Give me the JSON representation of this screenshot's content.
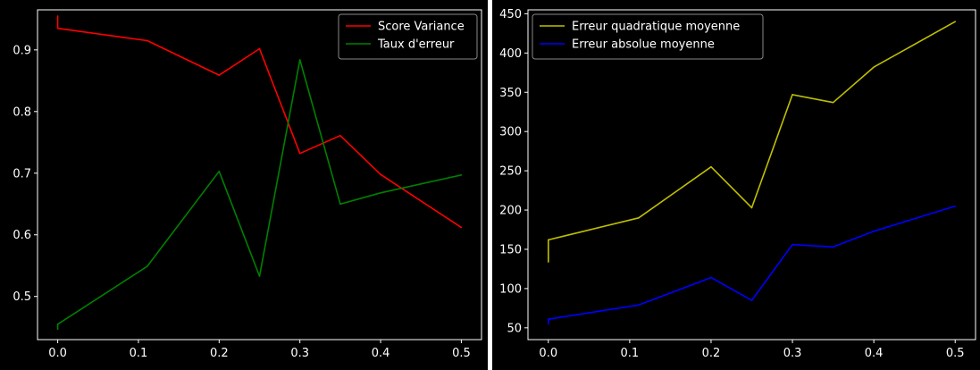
{
  "chart_data": [
    {
      "type": "line",
      "x": [
        0,
        0,
        0.111,
        0.2,
        0.25,
        0.3,
        0.35,
        0.4,
        0.5
      ],
      "xlim": [
        -0.025,
        0.525
      ],
      "ylim": [
        0.43,
        0.965
      ],
      "xticks": [
        "0.0",
        "0.1",
        "0.2",
        "0.3",
        "0.4",
        "0.5"
      ],
      "xtick_values": [
        0,
        0.1,
        0.2,
        0.3,
        0.4,
        0.5
      ],
      "yticks": [
        "0.5",
        "0.6",
        "0.7",
        "0.8",
        "0.9"
      ],
      "ytick_values": [
        0.5,
        0.6,
        0.7,
        0.8,
        0.9
      ],
      "legend_position": "top-right",
      "grid": false,
      "series": [
        {
          "name": "Score Variance",
          "color": "#ff0000",
          "values": [
            0.955,
            0.935,
            0.915,
            0.859,
            0.902,
            0.732,
            0.761,
            0.698,
            0.612
          ]
        },
        {
          "name": "Taux d'erreur",
          "color": "#008000",
          "values": [
            0.447,
            0.455,
            0.549,
            0.703,
            0.533,
            0.884,
            0.65,
            0.668,
            0.697
          ]
        }
      ]
    },
    {
      "type": "line",
      "x": [
        0,
        0,
        0.111,
        0.2,
        0.25,
        0.3,
        0.35,
        0.4,
        0.5
      ],
      "xlim": [
        -0.025,
        0.525
      ],
      "ylim": [
        35,
        455
      ],
      "xticks": [
        "0.0",
        "0.1",
        "0.2",
        "0.3",
        "0.4",
        "0.5"
      ],
      "xtick_values": [
        0,
        0.1,
        0.2,
        0.3,
        0.4,
        0.5
      ],
      "yticks": [
        "50",
        "100",
        "150",
        "200",
        "250",
        "300",
        "350",
        "400",
        "450"
      ],
      "ytick_values": [
        50,
        100,
        150,
        200,
        250,
        300,
        350,
        400,
        450
      ],
      "legend_position": "top-left",
      "grid": false,
      "series": [
        {
          "name": "Erreur quadratique moyenne",
          "color": "#bfbf00",
          "values": [
            134,
            162,
            190,
            255,
            203,
            347,
            337,
            382,
            440
          ]
        },
        {
          "name": "Erreur absolue moyenne",
          "color": "#0000ff",
          "values": [
            55,
            61,
            79,
            114,
            85,
            156,
            153,
            173,
            205
          ]
        }
      ]
    }
  ]
}
